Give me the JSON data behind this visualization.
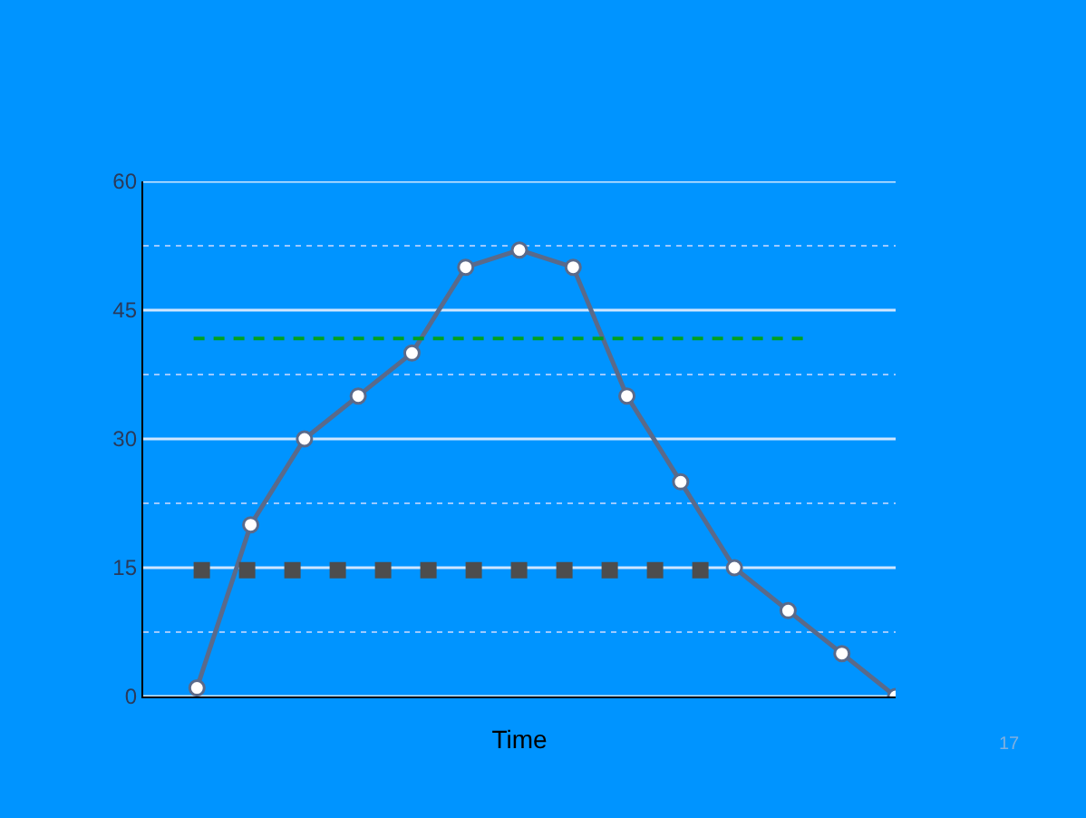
{
  "chart_data": {
    "type": "line",
    "xlabel": "Time",
    "categories": [
      null,
      null,
      null,
      null,
      null,
      null,
      null,
      null,
      null,
      null,
      null,
      null,
      null,
      null
    ],
    "ylim": [
      0,
      60
    ],
    "yticks": [
      0,
      {
        "value": 7.5,
        "label": null
      },
      15,
      {
        "value": 22.5,
        "label": null
      },
      30,
      {
        "value": 37.5,
        "label": null
      },
      45,
      {
        "value": 52.5,
        "label": null
      },
      60
    ],
    "tick_labels": "y",
    "grid": "y",
    "series": [
      {
        "color": "#5a6a8a",
        "marker": "circle",
        "line_style": "solid",
        "values": [
          1,
          20,
          30,
          35,
          40,
          50,
          52,
          50,
          35,
          25,
          15,
          10,
          5,
          0
        ]
      }
    ],
    "ref_lines": [
      {
        "axis": "y",
        "value": 14.7,
        "color": "#4d4d4d",
        "line_style": "dotted"
      },
      {
        "axis": "y",
        "value": 41.7,
        "color": "#00a020",
        "line_style": "dashed"
      }
    ],
    "annotations": [
      "17"
    ]
  }
}
